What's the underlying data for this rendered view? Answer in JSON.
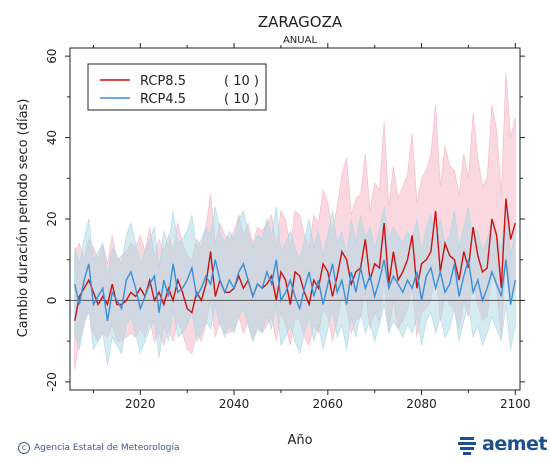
{
  "chart_data": {
    "type": "line",
    "title": "ZARAGOZA",
    "subtitle": "ANUAL",
    "xlabel": "Año",
    "ylabel": "Cambio duración periodo seco (días)",
    "xlim": [
      2005,
      2101
    ],
    "ylim": [
      -22,
      62
    ],
    "xticks": [
      2020,
      2040,
      2060,
      2080,
      2100
    ],
    "yticks": [
      -20,
      0,
      20,
      40,
      60
    ],
    "legend_position": "top-left",
    "zero_line": true,
    "x": [
      2006,
      2007,
      2008,
      2009,
      2010,
      2011,
      2012,
      2013,
      2014,
      2015,
      2016,
      2017,
      2018,
      2019,
      2020,
      2021,
      2022,
      2023,
      2024,
      2025,
      2026,
      2027,
      2028,
      2029,
      2030,
      2031,
      2032,
      2033,
      2034,
      2035,
      2036,
      2037,
      2038,
      2039,
      2040,
      2041,
      2042,
      2043,
      2044,
      2045,
      2046,
      2047,
      2048,
      2049,
      2050,
      2051,
      2052,
      2053,
      2054,
      2055,
      2056,
      2057,
      2058,
      2059,
      2060,
      2061,
      2062,
      2063,
      2064,
      2065,
      2066,
      2067,
      2068,
      2069,
      2070,
      2071,
      2072,
      2073,
      2074,
      2075,
      2076,
      2077,
      2078,
      2079,
      2080,
      2081,
      2082,
      2083,
      2084,
      2085,
      2086,
      2087,
      2088,
      2089,
      2090,
      2091,
      2092,
      2093,
      2094,
      2095,
      2096,
      2097,
      2098,
      2099,
      2100
    ],
    "series": [
      {
        "name": "RCP8.5",
        "count": "( 10 )",
        "color": "#cc1111",
        "band_color": "#f4b8c4",
        "values": [
          -5,
          1,
          3,
          5,
          2,
          -1,
          1,
          -1,
          4,
          -1,
          -1,
          0,
          2,
          1,
          3,
          1,
          5,
          0,
          2,
          -1,
          3,
          0,
          5,
          2,
          -2,
          -3,
          2,
          0,
          4,
          12,
          1,
          5,
          2,
          2,
          3,
          6,
          3,
          5,
          1,
          4,
          3,
          4,
          6,
          0,
          7,
          5,
          -1,
          7,
          6,
          2,
          -1,
          5,
          3,
          9,
          7,
          1,
          6,
          12,
          10,
          4,
          7,
          8,
          15,
          5,
          9,
          8,
          19,
          4,
          12,
          5,
          7,
          10,
          16,
          3,
          9,
          10,
          12,
          22,
          7,
          14,
          11,
          10,
          5,
          12,
          8,
          18,
          11,
          7,
          8,
          20,
          16,
          3,
          25,
          15,
          19
        ],
        "upper": [
          12,
          14,
          10,
          15,
          13,
          10,
          14,
          9,
          16,
          10,
          11,
          12,
          14,
          13,
          16,
          12,
          18,
          11,
          15,
          12,
          16,
          12,
          19,
          14,
          11,
          10,
          15,
          13,
          18,
          26,
          14,
          19,
          16,
          15,
          17,
          21,
          16,
          19,
          14,
          18,
          17,
          19,
          21,
          13,
          22,
          20,
          13,
          22,
          21,
          16,
          13,
          21,
          19,
          27,
          24,
          17,
          23,
          31,
          35,
          21,
          25,
          26,
          36,
          22,
          29,
          27,
          44,
          23,
          33,
          25,
          28,
          31,
          41,
          24,
          30,
          32,
          36,
          48,
          28,
          38,
          33,
          32,
          26,
          36,
          30,
          46,
          35,
          28,
          30,
          48,
          42,
          26,
          56,
          40,
          45
        ],
        "lower": [
          -17,
          -10,
          -5,
          -3,
          -8,
          -10,
          -8,
          -9,
          -6,
          -10,
          -10,
          -9,
          -8,
          -9,
          -7,
          -9,
          -5,
          -10,
          -8,
          -11,
          -7,
          -10,
          -5,
          -8,
          -12,
          -13,
          -8,
          -10,
          -6,
          0,
          -9,
          -5,
          -8,
          -8,
          -7,
          -4,
          -8,
          -5,
          -10,
          -6,
          -8,
          -6,
          -4,
          -10,
          -3,
          -6,
          -11,
          -4,
          -5,
          -9,
          -11,
          -6,
          -8,
          -2,
          -4,
          -10,
          -5,
          1,
          -2,
          -8,
          -5,
          -4,
          2,
          -7,
          -3,
          -5,
          5,
          -8,
          0,
          -7,
          -5,
          -2,
          3,
          -9,
          -3,
          -2,
          0,
          8,
          -5,
          1,
          -1,
          -2,
          -7,
          0,
          -4,
          5,
          -1,
          -5,
          -4,
          7,
          3,
          -9,
          11,
          1,
          5
        ]
      },
      {
        "name": "RCP4.5",
        "count": "( 10 )",
        "color": "#3a8fd8",
        "band_color": "#a9d8e6",
        "values": [
          4,
          -1,
          5,
          9,
          -1,
          1,
          3,
          -5,
          2,
          0,
          -2,
          5,
          7,
          3,
          -2,
          1,
          4,
          6,
          -3,
          5,
          1,
          9,
          2,
          3,
          5,
          8,
          1,
          3,
          6,
          4,
          10,
          5,
          2,
          5,
          3,
          7,
          9,
          5,
          1,
          4,
          3,
          7,
          4,
          10,
          0,
          2,
          5,
          1,
          -2,
          3,
          7,
          1,
          5,
          -1,
          4,
          9,
          2,
          5,
          -1,
          7,
          2,
          8,
          3,
          6,
          1,
          5,
          10,
          3,
          6,
          4,
          2,
          5,
          3,
          7,
          0,
          6,
          8,
          3,
          7,
          2,
          4,
          9,
          1,
          6,
          10,
          2,
          5,
          0,
          3,
          7,
          4,
          1,
          10,
          -1,
          5
        ],
        "upper": [
          13,
          9,
          15,
          20,
          10,
          12,
          14,
          6,
          13,
          11,
          9,
          16,
          19,
          14,
          9,
          12,
          15,
          18,
          8,
          17,
          13,
          22,
          14,
          15,
          17,
          21,
          13,
          15,
          18,
          16,
          23,
          17,
          14,
          17,
          15,
          20,
          22,
          17,
          13,
          16,
          15,
          20,
          16,
          23,
          12,
          14,
          17,
          13,
          10,
          15,
          20,
          13,
          17,
          11,
          16,
          22,
          14,
          17,
          11,
          20,
          14,
          21,
          15,
          18,
          13,
          17,
          23,
          15,
          18,
          16,
          14,
          17,
          15,
          20,
          12,
          18,
          21,
          15,
          20,
          14,
          16,
          22,
          13,
          18,
          23,
          14,
          17,
          12,
          15,
          20,
          16,
          13,
          23,
          11,
          17
        ],
        "lower": [
          -8,
          -12,
          -6,
          -2,
          -12,
          -10,
          -8,
          -16,
          -9,
          -11,
          -13,
          -6,
          -4,
          -8,
          -13,
          -10,
          -7,
          -5,
          -14,
          -6,
          -10,
          -2,
          -9,
          -8,
          -6,
          -3,
          -10,
          -8,
          -5,
          -7,
          -1,
          -6,
          -9,
          -6,
          -8,
          -4,
          -2,
          -6,
          -10,
          -7,
          -8,
          -4,
          -7,
          -1,
          -11,
          -9,
          -6,
          -10,
          -13,
          -8,
          -4,
          -10,
          -6,
          -12,
          -7,
          -2,
          -9,
          -6,
          -12,
          -4,
          -9,
          -3,
          -8,
          -5,
          -10,
          -6,
          -1,
          -8,
          -5,
          -7,
          -9,
          -6,
          -8,
          -4,
          -11,
          -5,
          -3,
          -8,
          -4,
          -9,
          -7,
          -2,
          -10,
          -5,
          -1,
          -9,
          -6,
          -11,
          -8,
          -4,
          -7,
          -10,
          -1,
          -12,
          -6
        ]
      }
    ]
  },
  "footer": {
    "credit": "Agencia Estatal de Meteorología",
    "logo_text": "aemet"
  }
}
